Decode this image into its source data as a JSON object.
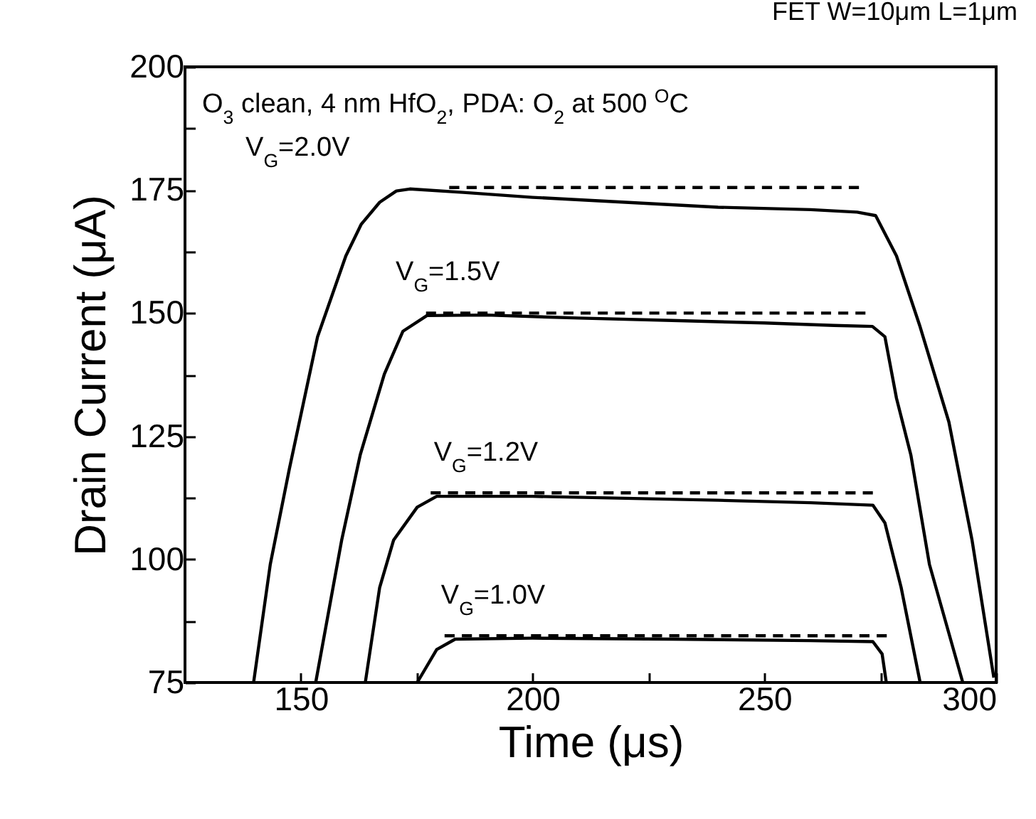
{
  "chart_data": {
    "type": "line",
    "title": "FET W=10μm L=1μm",
    "xlabel": "Time (μs)",
    "ylabel": "Drain Current (μA)",
    "xlim": [
      125,
      300
    ],
    "xticks": [
      150,
      {
        "value": 175,
        "label": null
      },
      200,
      {
        "value": 225,
        "label": null
      },
      250,
      {
        "value": 275,
        "label": null
      },
      300
    ],
    "ylim": [
      75,
      200
    ],
    "yticks": [
      75,
      {
        "value": 87.5,
        "label": null
      },
      100,
      {
        "value": 112.5,
        "label": null
      },
      125,
      {
        "value": 137.5,
        "label": null
      },
      150,
      {
        "value": 162.5,
        "label": null
      },
      175,
      {
        "value": 187.5,
        "label": null
      },
      200
    ],
    "grid": false,
    "line_style": "solid",
    "series": [
      {
        "name": "V$_{G}$=2.0V",
        "color": "#000000",
        "x": [
          139.8,
          143.4,
          147.5,
          153.6,
          159.7,
          163,
          167,
          170.6,
          173.5,
          185,
          200,
          220,
          240,
          260,
          270,
          274,
          278.5,
          283.6,
          289.8,
          294.8,
          299.5
        ],
        "values": [
          75,
          99,
          118.3,
          145.2,
          161.6,
          168,
          172.5,
          174.8,
          175.2,
          174.5,
          173.5,
          172.5,
          171.5,
          171,
          170.5,
          169.8,
          161.6,
          147.2,
          127.9,
          103.9,
          76
        ]
      },
      {
        "name": "V$_{G}$=1.5V",
        "color": "#000000",
        "x": [
          153.2,
          158.8,
          162.8,
          168,
          172,
          177.2,
          190,
          210,
          230,
          250,
          265,
          273.3,
          276,
          278.5,
          281.6,
          285.6,
          292.8
        ],
        "values": [
          75,
          103.9,
          121.2,
          137.6,
          146.3,
          149.5,
          149.6,
          149,
          148.5,
          148,
          147.5,
          147.3,
          145.2,
          132.7,
          121.2,
          99,
          75
        ]
      },
      {
        "name": "V$_{G}$=1.2V",
        "color": "#000000",
        "x": [
          163.9,
          167,
          170,
          175.1,
          179.3,
          200,
          220,
          240,
          260,
          273.4,
          276,
          279.5,
          283.6
        ],
        "values": [
          75,
          94.3,
          103.9,
          110.6,
          112.8,
          112.8,
          112.4,
          112,
          111.5,
          111,
          107.4,
          94.3,
          75
        ]
      },
      {
        "name": "V$_{G}$=1.0V",
        "color": "#000000",
        "x": [
          175.1,
          179.3,
          183.3,
          200,
          230,
          260,
          273.4,
          275.4,
          276.3
        ],
        "values": [
          75,
          81.7,
          83.8,
          84,
          83.8,
          83.5,
          83.3,
          80.8,
          75
        ]
      },
      {
        "color": "#000000",
        "line_style": "dashed",
        "x": [
          182,
          270.4
        ],
        "values": [
          175.5,
          175.5
        ]
      },
      {
        "color": "#000000",
        "line_style": "dashed",
        "x": [
          177,
          271.8
        ],
        "values": [
          150,
          150
        ]
      },
      {
        "color": "#000000",
        "line_style": "dashed",
        "x": [
          178,
          273.4
        ],
        "values": [
          113.5,
          113.5
        ]
      },
      {
        "color": "#000000",
        "line_style": "dashed",
        "x": [
          181,
          276.4
        ],
        "values": [
          84.5,
          84.5
        ]
      }
    ],
    "annotations": [
      "O$_{3}$ clean, 4 nm HfO$_{2}$, PDA: O$_{2}$ at 500 $^{O}$C"
    ]
  }
}
